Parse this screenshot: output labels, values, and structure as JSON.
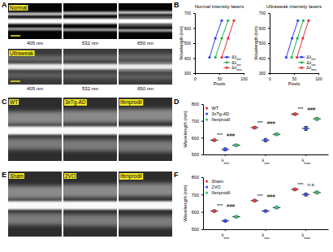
{
  "panel_labels": [
    "A",
    "B",
    "C",
    "D",
    "E",
    "F"
  ],
  "image_panels": {
    "A": {
      "rows": [
        {
          "label": "Normal",
          "captions": [
            "405 nm",
            "532 nm",
            "650 nm"
          ]
        },
        {
          "label": "Ultraweak",
          "captions": [
            "405 nm",
            "532 nm",
            "650 nm"
          ]
        }
      ]
    },
    "C": {
      "labels": [
        "WT",
        "3xTg-AD",
        "Ifenprodil"
      ]
    },
    "E": {
      "labels": [
        "Sham",
        "2VO",
        "Ifenprodil"
      ]
    }
  },
  "chart_data": [
    {
      "type": "line",
      "title": "Normal intensity lasers",
      "x_label": "Pixels",
      "y_label": "Wavelength (nm)",
      "xlim": [
        0,
        100
      ],
      "xticks": [
        0,
        50,
        100
      ],
      "ylim": [
        300,
        700
      ],
      "yticks": [
        300,
        400,
        500,
        600,
        700
      ],
      "legend": "lower right",
      "marker": "circle",
      "series": [
        {
          "name": "Δλmin",
          "color": "#2a3bf0",
          "x": [
            30,
            42,
            55
          ],
          "values": [
            405,
            532,
            650
          ]
        },
        {
          "name": "Δλave",
          "color": "#1fae4b",
          "x": [
            42,
            55,
            68
          ],
          "values": [
            405,
            532,
            650
          ]
        },
        {
          "name": "Δλmax",
          "color": "#f0282d",
          "x": [
            55,
            68,
            80
          ],
          "values": [
            405,
            532,
            650
          ]
        }
      ]
    },
    {
      "type": "line",
      "title": "Ultraweak intensity lasers",
      "x_label": "Pixels",
      "y_label": "Wavelength (nm)",
      "xlim": [
        0,
        100
      ],
      "xticks": [
        0,
        50,
        100
      ],
      "ylim": [
        300,
        700
      ],
      "yticks": [
        300,
        400,
        500,
        600,
        700
      ],
      "legend": "lower right",
      "marker": "circle",
      "series": [
        {
          "name": "Δλmin",
          "color": "#2a3bf0",
          "x": [
            34,
            46,
            58
          ],
          "values": [
            405,
            532,
            650
          ]
        },
        {
          "name": "Δλave",
          "color": "#1fae4b",
          "x": [
            45,
            57,
            69
          ],
          "values": [
            405,
            532,
            650
          ]
        },
        {
          "name": "Δλmax",
          "color": "#f0282d",
          "x": [
            56,
            68,
            80
          ],
          "values": [
            405,
            532,
            650
          ]
        }
      ]
    },
    {
      "type": "errorbar",
      "y_label": "Wavelength (nm)",
      "categories": [
        "λmin",
        "λave",
        "λmax"
      ],
      "ylim": [
        500,
        800
      ],
      "yticks": [
        500,
        600,
        700,
        800
      ],
      "legend": "upper left",
      "marker": "circle",
      "series": [
        {
          "name": "WT",
          "color": "#f4373c",
          "values": [
            585,
            660,
            740
          ],
          "errors": [
            5,
            6,
            5
          ]
        },
        {
          "name": "3xTg-AD",
          "color": "#3a4cf5",
          "values": [
            530,
            585,
            655
          ],
          "errors": [
            8,
            10,
            12
          ]
        },
        {
          "name": "Ifenprodil",
          "color": "#2ecc71",
          "values": [
            555,
            620,
            712
          ],
          "errors": [
            5,
            6,
            8
          ]
        }
      ],
      "annotations": [
        {
          "text": "***",
          "category": 0,
          "between": [
            0,
            1
          ]
        },
        {
          "text": "###",
          "category": 0,
          "between": [
            1,
            2
          ]
        },
        {
          "text": "***",
          "category": 1,
          "between": [
            0,
            1
          ]
        },
        {
          "text": "###",
          "category": 1,
          "between": [
            1,
            2
          ]
        },
        {
          "text": "***",
          "category": 2,
          "between": [
            0,
            1
          ]
        },
        {
          "text": "###",
          "category": 2,
          "between": [
            1,
            2
          ]
        }
      ]
    },
    {
      "type": "errorbar",
      "y_label": "Wavelength (nm)",
      "categories": [
        "λmin",
        "λave",
        "λmax"
      ],
      "ylim": [
        500,
        800
      ],
      "yticks": [
        500,
        600,
        700,
        800
      ],
      "legend": "upper left",
      "marker": "circle",
      "series": [
        {
          "name": "Sham",
          "color": "#f4373c",
          "values": [
            605,
            665,
            730
          ],
          "errors": [
            6,
            5,
            6
          ]
        },
        {
          "name": "2VO",
          "color": "#3a4cf5",
          "values": [
            548,
            605,
            700
          ],
          "errors": [
            5,
            5,
            8
          ]
        },
        {
          "name": "Ifenprodil",
          "color": "#2ecc71",
          "values": [
            572,
            625,
            712
          ],
          "errors": [
            5,
            6,
            7
          ]
        }
      ],
      "annotations": [
        {
          "text": "***",
          "category": 0,
          "between": [
            0,
            1
          ]
        },
        {
          "text": "###",
          "category": 0,
          "between": [
            1,
            2
          ]
        },
        {
          "text": "***",
          "category": 1,
          "between": [
            0,
            1
          ]
        },
        {
          "text": "###",
          "category": 1,
          "between": [
            1,
            2
          ]
        },
        {
          "text": "***",
          "category": 2,
          "between": [
            0,
            1
          ]
        },
        {
          "text": "n.s.",
          "category": 2,
          "between": [
            1,
            2
          ]
        }
      ]
    }
  ]
}
